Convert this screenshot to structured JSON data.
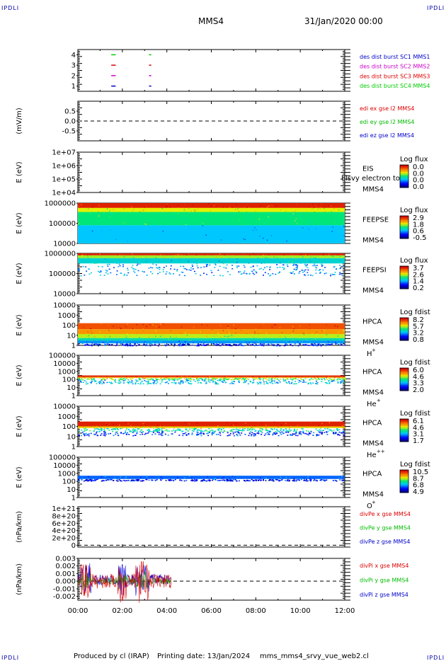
{
  "header": {
    "corner_logo": "IPDLI",
    "spacecraft": "MMS4",
    "datetime": "31/Jan/2020 00:00"
  },
  "footer": {
    "produced_by": "Produced by cl (IRAP)",
    "printing_date": "Printing date: 13/Jan/2024",
    "filename": "mms_mms4_srvy_vue_web2.cl"
  },
  "chart_data": {
    "type": "stacked-panels",
    "x_range": [
      "00:00",
      "12:00"
    ],
    "x_ticks": [
      "00:00",
      "02:00",
      "04:00",
      "06:00",
      "08:00",
      "10:00",
      "12:00"
    ],
    "panels": [
      {
        "id": "des_dist_burst",
        "type": "scatter",
        "ylabel": "",
        "ylim": [
          0.5,
          4.5
        ],
        "y_ticks": [
          "1",
          "2",
          "3",
          "4"
        ],
        "legend": [
          {
            "label": "des dist burst SC1 MMS1",
            "color": "#0000cc"
          },
          {
            "label": "des dist burst SC2 MMS2",
            "color": "#cc00cc"
          },
          {
            "label": "des dist burst SC3 MMS3",
            "color": "#dd0000"
          },
          {
            "label": "des dist burst SC4 MMS4",
            "color": "#00cc00"
          }
        ],
        "series": [
          {
            "name": "SC1",
            "y": 1,
            "intervals_hours": [
              [
                1.5,
                1.7
              ],
              [
                3.2,
                3.3
              ]
            ],
            "color": "#0000cc"
          },
          {
            "name": "SC2",
            "y": 2,
            "intervals_hours": [
              [
                1.5,
                1.7
              ],
              [
                3.2,
                3.3
              ]
            ],
            "color": "#cc00cc"
          },
          {
            "name": "SC3",
            "y": 3,
            "intervals_hours": [
              [
                1.5,
                1.7
              ],
              [
                3.2,
                3.3
              ]
            ],
            "color": "#dd0000"
          },
          {
            "name": "SC4",
            "y": 4,
            "intervals_hours": [
              [
                1.5,
                1.7
              ],
              [
                3.2,
                3.3
              ]
            ],
            "color": "#00cc00"
          }
        ]
      },
      {
        "id": "edi_e",
        "type": "line",
        "ylabel": "(mV/m)",
        "ylim": [
          -1.0,
          1.0
        ],
        "y_ticks": [
          "0.5",
          "0.0",
          "-0.5"
        ],
        "y_tick_values": [
          0.5,
          0.0,
          -0.5
        ],
        "zero_line": true,
        "legend": [
          {
            "label": "edi ex gse l2 MMS4",
            "color": "#dd0000"
          },
          {
            "label": "edi ey gse l2 MMS4",
            "color": "#00bb00"
          },
          {
            "label": "edi ez gse l2 MMS4",
            "color": "#0000cc"
          }
        ]
      },
      {
        "id": "eis",
        "type": "heatmap",
        "ylabel": "E (eV)",
        "y_ticks": [
          "1e+07",
          "1e+06",
          "1e+05",
          "1e+04"
        ],
        "instrument": "EIS",
        "instrument_sub": "MMS4",
        "overlay_text": "l lsvy electron to",
        "colorbar_title": "Log flux",
        "colorbar_ticks": [
          "0.0",
          "0.0",
          "0.0",
          "0.0"
        ],
        "data": "empty"
      },
      {
        "id": "feepse",
        "type": "heatmap",
        "ylabel": "E (eV)",
        "y_ticks": [
          "1000000",
          "100000",
          "10000"
        ],
        "instrument": "FEEPSE",
        "instrument_sub": "MMS4",
        "colorbar_title": "Log flux",
        "colorbar_ticks": [
          "2.9",
          "1.8",
          "0.6",
          "-0.5"
        ],
        "coverage_hours": [
          0,
          12
        ],
        "bands": [
          {
            "from": 0.0,
            "to": 0.12,
            "level": 0.95
          },
          {
            "from": 0.12,
            "to": 0.22,
            "level": 0.65
          },
          {
            "from": 0.22,
            "to": 0.55,
            "level": 0.5
          },
          {
            "from": 0.55,
            "to": 1.0,
            "level": 0.35
          }
        ]
      },
      {
        "id": "feepsi",
        "type": "heatmap",
        "ylabel": "E (eV)",
        "y_ticks": [
          "1000000",
          "100000",
          "10000"
        ],
        "instrument": "FEEPSI",
        "instrument_sub": "MMS4",
        "colorbar_title": "Log flux",
        "colorbar_ticks": [
          "3.7",
          "2.6",
          "1.4",
          "0.2"
        ],
        "coverage_hours": [
          0,
          12
        ],
        "bands": [
          {
            "from": 0.0,
            "to": 0.05,
            "level": 0.95
          },
          {
            "from": 0.05,
            "to": 0.12,
            "level": 0.6
          },
          {
            "from": 0.12,
            "to": 0.25,
            "level": 0.4
          },
          {
            "from": 0.25,
            "to": 0.55,
            "level": 0.3,
            "sparse": true
          }
        ]
      },
      {
        "id": "hpca_h",
        "type": "heatmap",
        "ylabel": "E (eV)",
        "y_ticks": [
          "10000",
          "1000",
          "100",
          "10",
          "1"
        ],
        "instrument": "HPCA",
        "instrument_sub": "MMS4",
        "species": "H",
        "species_sup": "+",
        "colorbar_title": "Log fdist",
        "colorbar_ticks": [
          "8.2",
          "5.7",
          "3.2",
          "0.8"
        ],
        "coverage_hours": [
          0,
          12
        ],
        "bands": [
          {
            "from": 0.45,
            "to": 0.6,
            "level": 0.88
          },
          {
            "from": 0.6,
            "to": 0.72,
            "level": 0.78
          },
          {
            "from": 0.72,
            "to": 0.82,
            "level": 0.62
          },
          {
            "from": 0.82,
            "to": 0.88,
            "level": 0.45
          },
          {
            "from": 0.88,
            "to": 0.95,
            "level": 0.3
          },
          {
            "from": 0.95,
            "to": 1.0,
            "level": 0.15,
            "sparse": true
          }
        ]
      },
      {
        "id": "hpca_he",
        "type": "heatmap",
        "ylabel": "E (eV)",
        "y_ticks": [
          "100000",
          "10000",
          "1000",
          "100",
          "10",
          "1"
        ],
        "instrument": "HPCA",
        "instrument_sub": "MMS4",
        "species": "He",
        "species_sup": "+",
        "colorbar_title": "Log fdist",
        "colorbar_ticks": [
          "6.0",
          "4.6",
          "3.3",
          "2.0"
        ],
        "coverage_hours": [
          0,
          12
        ],
        "bands": [
          {
            "from": 0.5,
            "to": 0.54,
            "level": 0.95
          },
          {
            "from": 0.54,
            "to": 0.56,
            "level": 0.75
          },
          {
            "from": 0.56,
            "to": 0.6,
            "level": 0.55,
            "sparse": true
          },
          {
            "from": 0.6,
            "to": 0.7,
            "level": 0.35,
            "sparse": true
          }
        ]
      },
      {
        "id": "hpca_hepp",
        "type": "heatmap",
        "ylabel": "E (eV)",
        "y_ticks": [
          "10000",
          "1000",
          "100",
          "10",
          "1"
        ],
        "instrument": "HPCA",
        "instrument_sub": "MMS4",
        "species": "He",
        "species_sup": "++",
        "colorbar_title": "Log fdist",
        "colorbar_ticks": [
          "6.1",
          "4.6",
          "3.1",
          "1.7"
        ],
        "coverage_hours": [
          0,
          12
        ],
        "bands": [
          {
            "from": 0.38,
            "to": 0.5,
            "level": 0.95
          },
          {
            "from": 0.5,
            "to": 0.54,
            "level": 0.7
          },
          {
            "from": 0.54,
            "to": 0.62,
            "level": 0.45,
            "sparse": true
          },
          {
            "from": 0.62,
            "to": 0.72,
            "level": 0.2,
            "sparse": true
          }
        ]
      },
      {
        "id": "hpca_o",
        "type": "heatmap",
        "ylabel": "E (eV)",
        "y_ticks": [
          "100000",
          "10000",
          "1000",
          "100",
          "10",
          "1"
        ],
        "instrument": "HPCA",
        "instrument_sub": "MMS4",
        "species": "O",
        "species_sup": "+",
        "colorbar_title": "Log fdist",
        "colorbar_ticks": [
          "10.5",
          "8.7",
          "6.8",
          "4.9"
        ],
        "coverage_hours": [
          0,
          12
        ],
        "bands": [
          {
            "from": 0.46,
            "to": 0.54,
            "level": 0.25
          },
          {
            "from": 0.54,
            "to": 0.58,
            "level": 0.15,
            "sparse": true
          }
        ]
      },
      {
        "id": "divpe",
        "type": "line",
        "ylabel": "(nPa/km)",
        "ylim": [
          -5e+19,
          1.05e+21
        ],
        "y_ticks": [
          "1e+21",
          "8e+20",
          "6e+20",
          "4e+20",
          "2e+20",
          "0"
        ],
        "y_tick_values": [
          1e+21,
          8e+20,
          6e+20,
          4e+20,
          2e+20,
          0
        ],
        "zero_line": true,
        "legend": [
          {
            "label": "divPe x gse MMS4",
            "color": "#dd0000"
          },
          {
            "label": "divPe y gse MMS4",
            "color": "#00bb00"
          },
          {
            "label": "divPe z gse MMS4",
            "color": "#0000cc"
          }
        ]
      },
      {
        "id": "divpi",
        "type": "line",
        "ylabel": "(nPa/km)",
        "ylim": [
          -0.0025,
          0.003
        ],
        "y_ticks": [
          "0.003",
          "0.002",
          "0.001",
          "0.000",
          "-0.001",
          "-0.002"
        ],
        "y_tick_values": [
          0.003,
          0.002,
          0.001,
          0.0,
          -0.001,
          -0.002
        ],
        "zero_line": true,
        "data_end_hours": 4.2,
        "legend": [
          {
            "label": "divPi x gse MMS4",
            "color": "#dd0000"
          },
          {
            "label": "divPi y gse MMS4",
            "color": "#00bb00"
          },
          {
            "label": "divPi z gse MMS4",
            "color": "#0000cc"
          }
        ]
      }
    ]
  }
}
